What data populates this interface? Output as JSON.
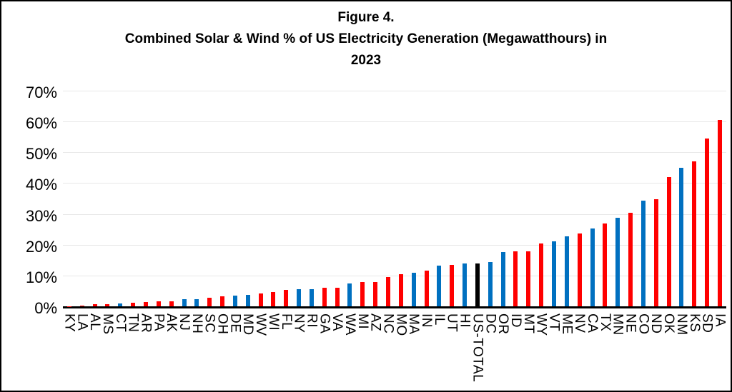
{
  "title": {
    "line1": "Figure 4.",
    "line2": "Combined Solar & Wind % of US Electricity Generation (Megawatthours) in",
    "line3": "2023"
  },
  "chart_data": {
    "type": "bar",
    "title": "Figure 4. Combined Solar & Wind % of US Electricity Generation (Megawatthours) in 2023",
    "xlabel": "",
    "ylabel": "",
    "ylim": [
      0,
      70
    ],
    "ytick_labels": [
      "0%",
      "10%",
      "20%",
      "30%",
      "40%",
      "50%",
      "60%",
      "70%"
    ],
    "grid": true,
    "legend": false,
    "colors": {
      "red": "#FF0000",
      "blue": "#0070C0",
      "black": "#000000"
    },
    "bars": [
      {
        "label": "KY",
        "value": 0.1,
        "color": "red"
      },
      {
        "label": "LA",
        "value": 0.2,
        "color": "red"
      },
      {
        "label": "AL",
        "value": 0.6,
        "color": "red"
      },
      {
        "label": "MS",
        "value": 0.7,
        "color": "red"
      },
      {
        "label": "CT",
        "value": 1.0,
        "color": "blue"
      },
      {
        "label": "TN",
        "value": 1.2,
        "color": "red"
      },
      {
        "label": "AR",
        "value": 1.4,
        "color": "red"
      },
      {
        "label": "PA",
        "value": 1.6,
        "color": "red"
      },
      {
        "label": "AK",
        "value": 1.7,
        "color": "red"
      },
      {
        "label": "NJ",
        "value": 2.3,
        "color": "blue"
      },
      {
        "label": "NH",
        "value": 2.4,
        "color": "blue"
      },
      {
        "label": "SC",
        "value": 2.7,
        "color": "red"
      },
      {
        "label": "OH",
        "value": 3.2,
        "color": "red"
      },
      {
        "label": "DE",
        "value": 3.5,
        "color": "blue"
      },
      {
        "label": "MD",
        "value": 3.7,
        "color": "blue"
      },
      {
        "label": "WV",
        "value": 4.1,
        "color": "red"
      },
      {
        "label": "WI",
        "value": 4.7,
        "color": "red"
      },
      {
        "label": "FL",
        "value": 5.3,
        "color": "red"
      },
      {
        "label": "NY",
        "value": 5.5,
        "color": "blue"
      },
      {
        "label": "RI",
        "value": 5.6,
        "color": "blue"
      },
      {
        "label": "GA",
        "value": 6.0,
        "color": "red"
      },
      {
        "label": "VA",
        "value": 6.1,
        "color": "red"
      },
      {
        "label": "WA",
        "value": 7.4,
        "color": "blue"
      },
      {
        "label": "MI",
        "value": 7.8,
        "color": "red"
      },
      {
        "label": "AZ",
        "value": 8.0,
        "color": "red"
      },
      {
        "label": "NC",
        "value": 9.4,
        "color": "red"
      },
      {
        "label": "MO",
        "value": 10.5,
        "color": "red"
      },
      {
        "label": "MA",
        "value": 11.0,
        "color": "blue"
      },
      {
        "label": "IN",
        "value": 11.7,
        "color": "red"
      },
      {
        "label": "IL",
        "value": 13.1,
        "color": "blue"
      },
      {
        "label": "UT",
        "value": 13.5,
        "color": "red"
      },
      {
        "label": "HI",
        "value": 13.8,
        "color": "blue"
      },
      {
        "label": "US-TOTAL",
        "value": 14.0,
        "color": "black"
      },
      {
        "label": "DC",
        "value": 14.3,
        "color": "blue"
      },
      {
        "label": "OR",
        "value": 17.6,
        "color": "blue"
      },
      {
        "label": "ID",
        "value": 17.8,
        "color": "red"
      },
      {
        "label": "MT",
        "value": 17.9,
        "color": "red"
      },
      {
        "label": "WY",
        "value": 20.3,
        "color": "red"
      },
      {
        "label": "VT",
        "value": 21.1,
        "color": "blue"
      },
      {
        "label": "ME",
        "value": 22.7,
        "color": "blue"
      },
      {
        "label": "NV",
        "value": 23.6,
        "color": "red"
      },
      {
        "label": "CA",
        "value": 25.3,
        "color": "blue"
      },
      {
        "label": "TX",
        "value": 27.0,
        "color": "red"
      },
      {
        "label": "MN",
        "value": 28.7,
        "color": "blue"
      },
      {
        "label": "NE",
        "value": 30.3,
        "color": "red"
      },
      {
        "label": "CO",
        "value": 34.4,
        "color": "blue"
      },
      {
        "label": "ND",
        "value": 34.8,
        "color": "red"
      },
      {
        "label": "OK",
        "value": 42.0,
        "color": "red"
      },
      {
        "label": "NM",
        "value": 45.0,
        "color": "blue"
      },
      {
        "label": "KS",
        "value": 47.1,
        "color": "red"
      },
      {
        "label": "SD",
        "value": 54.5,
        "color": "red"
      },
      {
        "label": "IA",
        "value": 60.5,
        "color": "red"
      }
    ]
  }
}
